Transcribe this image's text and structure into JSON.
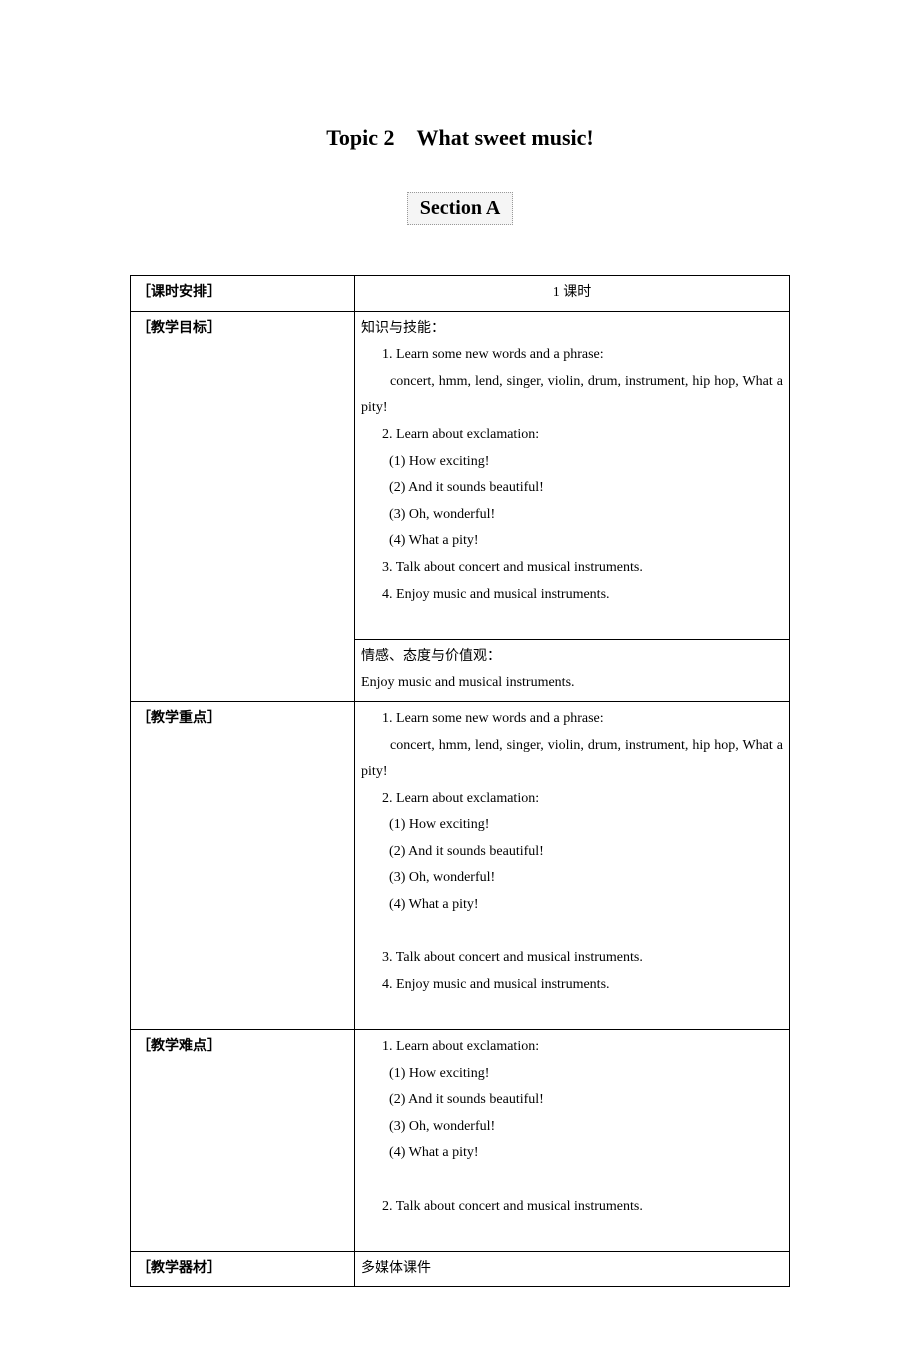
{
  "title": "Topic 2　What sweet music!",
  "section_label": "Section A",
  "rows": {
    "schedule": {
      "label": "［课时安排］",
      "content": "1 课时"
    },
    "objectives": {
      "label": "［教学目标］",
      "heading1": "知识与技能：",
      "item1": "1. Learn some new words and a phrase:",
      "item1_detail": "concert, hmm, lend, singer, violin, drum, instrument, hip hop, What a pity!",
      "item2": "2. Learn about exclamation:",
      "item2_1": "(1) How exciting!",
      "item2_2": "(2) And it sounds beautiful!",
      "item2_3": "(3) Oh, wonderful!",
      "item2_4": "(4) What a pity!",
      "item3": "3. Talk about concert and musical instruments.",
      "item4": "4. Enjoy music and musical instruments.",
      "heading2": "情感、态度与价值观：",
      "heading2_content": "Enjoy music and musical instruments."
    },
    "key_points": {
      "label": "［教学重点］",
      "item1": "1. Learn some new words and a phrase:",
      "item1_detail": "concert, hmm, lend, singer, violin, drum, instrument, hip hop, What a pity!",
      "item2": "2. Learn about exclamation:",
      "item2_1": "(1) How exciting!",
      "item2_2": "(2) And it sounds beautiful!",
      "item2_3": "(3) Oh, wonderful!",
      "item2_4": "(4) What a pity!",
      "item3": "3. Talk about concert and musical instruments.",
      "item4": "4. Enjoy music and musical instruments."
    },
    "difficulties": {
      "label": "［教学难点］",
      "item1": "1. Learn about exclamation:",
      "item1_1": "(1) How exciting!",
      "item1_2": "(2) And it sounds beautiful!",
      "item1_3": "(3) Oh, wonderful!",
      "item1_4": "(4) What a pity!",
      "item2": "2. Talk about concert and musical instruments."
    },
    "equipment": {
      "label": "［教学器材］",
      "content": "多媒体课件"
    }
  }
}
